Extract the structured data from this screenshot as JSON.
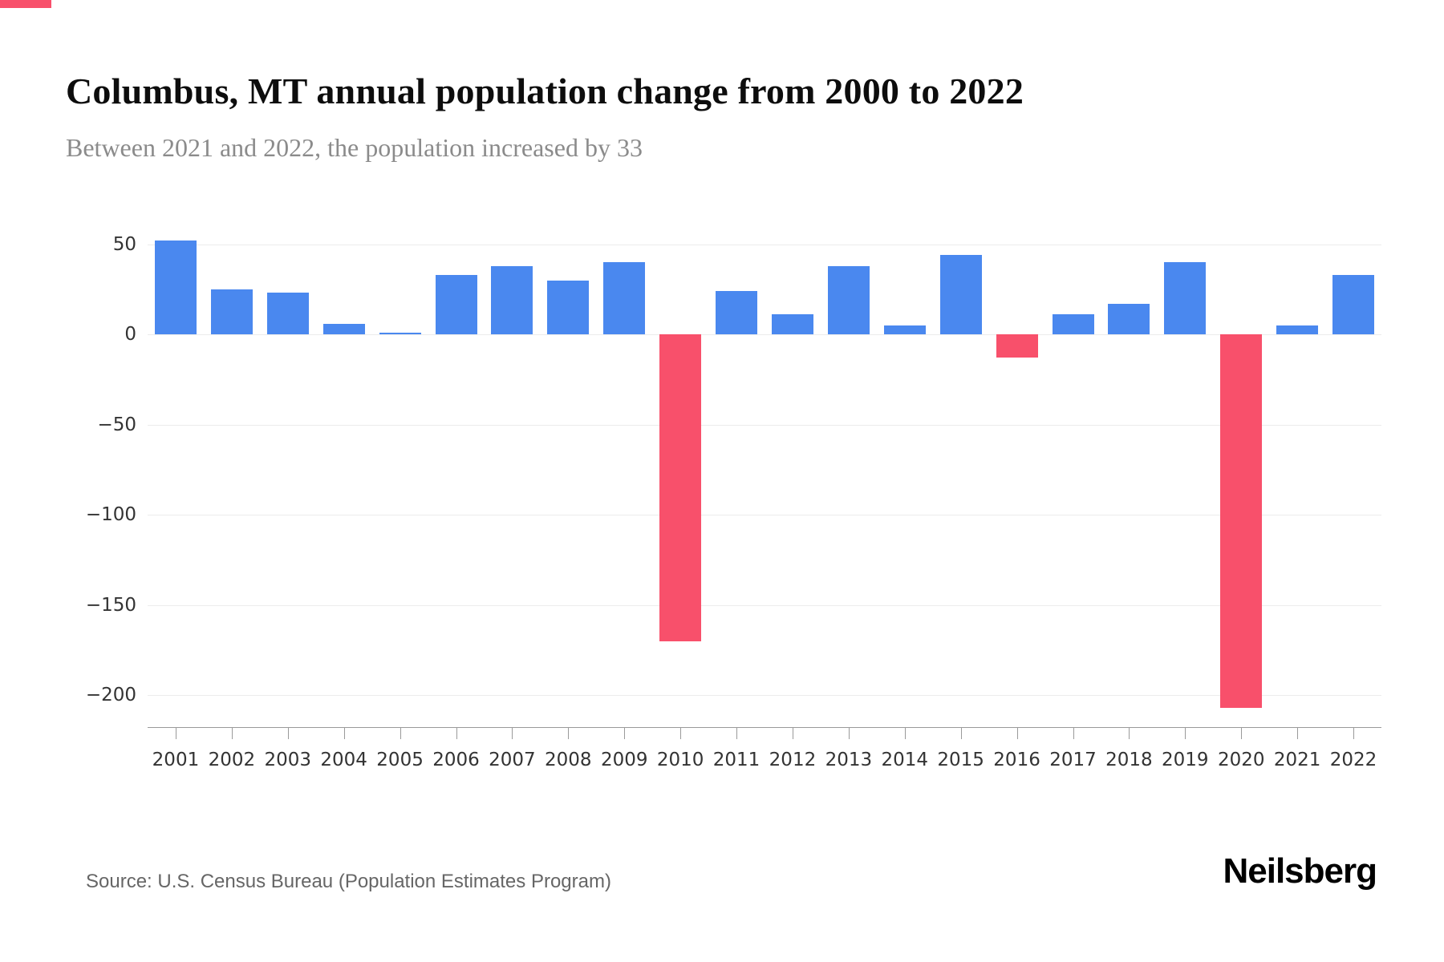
{
  "header": {
    "title": "Columbus, MT annual population change from 2000 to 2022",
    "subtitle": "Between 2021 and 2022, the population increased by 33"
  },
  "footer": {
    "source": "Source: U.S. Census Bureau (Population Estimates Program)",
    "logo": "Neilsberg"
  },
  "colors": {
    "positive_bar": "#4a88ef",
    "negative_bar": "#f8506b",
    "top_accent": "#f8506b",
    "gridline": "#ececec",
    "axis": "#9a9a9a",
    "tick_label": "#333333"
  },
  "chart_data": {
    "type": "bar",
    "title": "Columbus, MT annual population change from 2000 to 2022",
    "subtitle": "Between 2021 and 2022, the population increased by 33",
    "xlabel": "",
    "ylabel": "",
    "categories": [
      "2001",
      "2002",
      "2003",
      "2004",
      "2005",
      "2006",
      "2007",
      "2008",
      "2009",
      "2010",
      "2011",
      "2012",
      "2013",
      "2014",
      "2015",
      "2016",
      "2017",
      "2018",
      "2019",
      "2020",
      "2021",
      "2022"
    ],
    "values": [
      52,
      25,
      23,
      6,
      1,
      33,
      38,
      30,
      40,
      -170,
      24,
      11,
      38,
      5,
      44,
      -13,
      11,
      17,
      40,
      -207,
      5,
      33
    ],
    "yticks": [
      50,
      0,
      -50,
      -100,
      -150,
      -200
    ],
    "ylim": [
      -218,
      60
    ],
    "grid": true,
    "legend": false,
    "positive_color": "#4a88ef",
    "negative_color": "#f8506b"
  }
}
